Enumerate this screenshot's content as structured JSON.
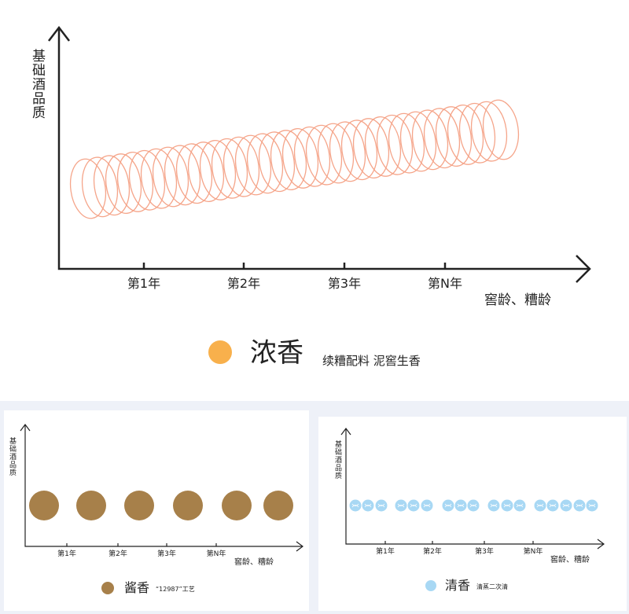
{
  "panels": [
    {
      "y_axis_label": "基础酒品质",
      "x_ticks": [
        "第1年",
        "第2年",
        "第3年",
        "第N年"
      ],
      "x_axis_label": "窖龄、糟龄",
      "legend": {
        "name": "浓香",
        "description": "续糟配料 泥窖生香"
      }
    },
    {
      "y_axis_label": "基础酒品质",
      "x_ticks": [
        "第1年",
        "第2年",
        "第3年",
        "第N年"
      ],
      "x_axis_label": "窖龄、糟龄",
      "legend": {
        "name": "酱香",
        "description": "“12987”工艺"
      }
    },
    {
      "y_axis_label": "基础酒品质",
      "x_ticks": [
        "第1年",
        "第2年",
        "第3年",
        "第N年"
      ],
      "x_axis_label": "窖龄、糟龄",
      "legend": {
        "name": "清香",
        "description": "清蒸二次清"
      }
    }
  ]
}
